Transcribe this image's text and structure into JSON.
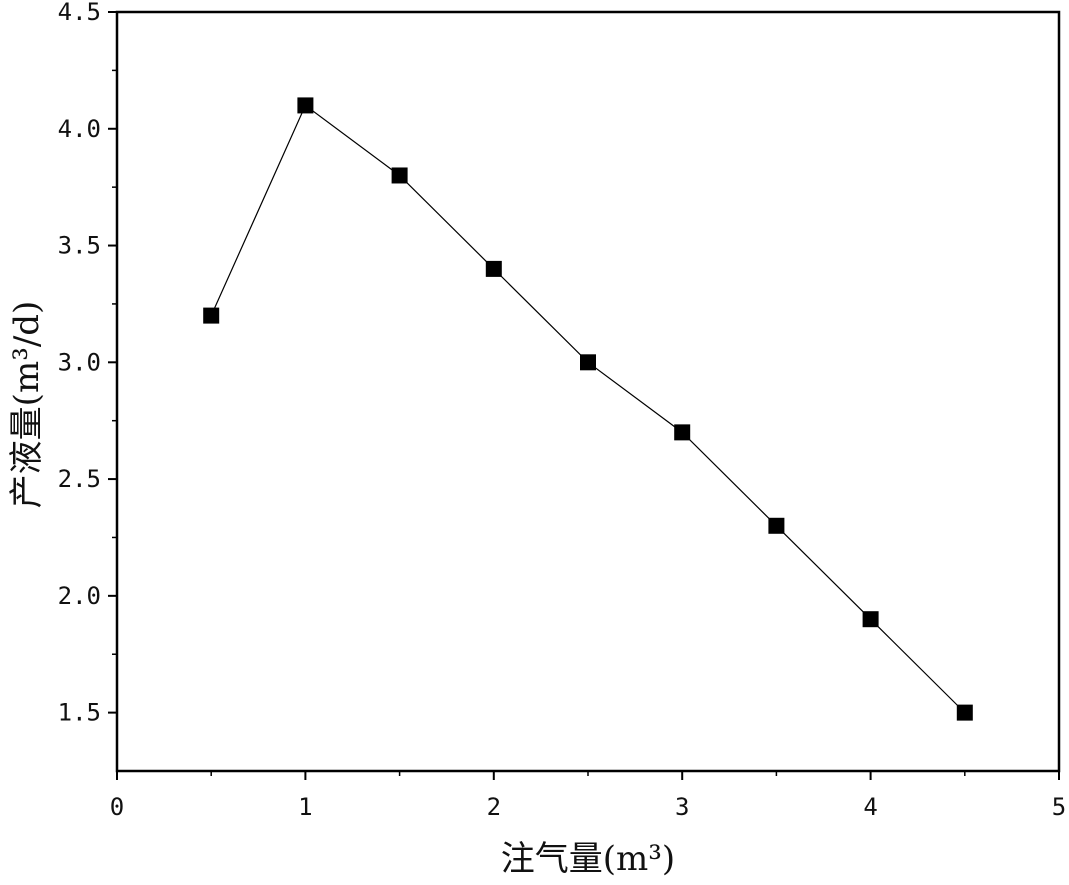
{
  "chart_data": {
    "type": "line",
    "xlabel": "注气量(m³)",
    "ylabel": "产液量(m³/d)",
    "xlim": [
      0,
      5
    ],
    "ylim": [
      1.25,
      4.5
    ],
    "x_ticks": [
      0,
      1,
      2,
      3,
      4,
      5
    ],
    "x_tick_labels": [
      "0",
      "1",
      "2",
      "3",
      "4",
      "5"
    ],
    "y_ticks": [
      1.5,
      2.0,
      2.5,
      3.0,
      3.5,
      4.0,
      4.5
    ],
    "y_tick_labels": [
      "1.5",
      "2.0",
      "2.5",
      "3.0",
      "3.5",
      "4.0",
      "4.5"
    ],
    "grid": false,
    "marker": "square",
    "series": [
      {
        "x": [
          0.5,
          1.0,
          1.5,
          2.0,
          2.5,
          3.0,
          3.5,
          4.0,
          4.5
        ],
        "y": [
          3.2,
          4.1,
          3.8,
          3.4,
          3.0,
          2.7,
          2.3,
          1.9,
          1.5
        ],
        "color": "#000000"
      }
    ]
  }
}
